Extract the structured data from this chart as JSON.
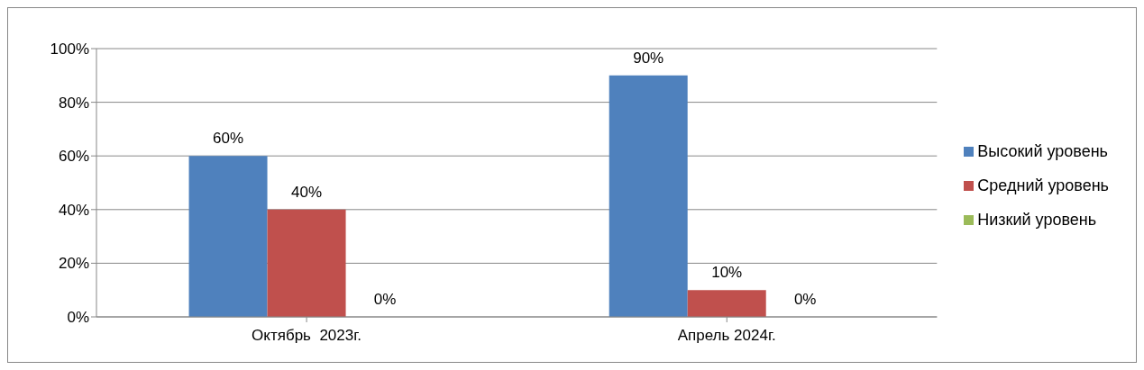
{
  "chart_data": {
    "type": "bar",
    "categories": [
      "Октябрь  2023г.",
      "Апрель 2024г."
    ],
    "series": [
      {
        "name": "Высокий уровень",
        "color": "#4f81bd",
        "values": [
          60,
          90
        ],
        "value_labels": [
          "60%",
          "90%"
        ]
      },
      {
        "name": "Средний уровень",
        "color": "#c0504d",
        "values": [
          40,
          10
        ],
        "value_labels": [
          "40%",
          "10%"
        ]
      },
      {
        "name": "Низкий уровень",
        "color": "#9bbb59",
        "values": [
          0,
          0
        ],
        "value_labels": [
          "0%",
          "0%"
        ]
      }
    ],
    "ylim": [
      0,
      100
    ],
    "yticks": [
      {
        "value": 0,
        "label": "0%"
      },
      {
        "value": 20,
        "label": "20%"
      },
      {
        "value": 40,
        "label": "40%"
      },
      {
        "value": 60,
        "label": "60%"
      },
      {
        "value": 80,
        "label": "80%"
      },
      {
        "value": 100,
        "label": "100%"
      }
    ],
    "grid": "y",
    "legend": "right"
  }
}
